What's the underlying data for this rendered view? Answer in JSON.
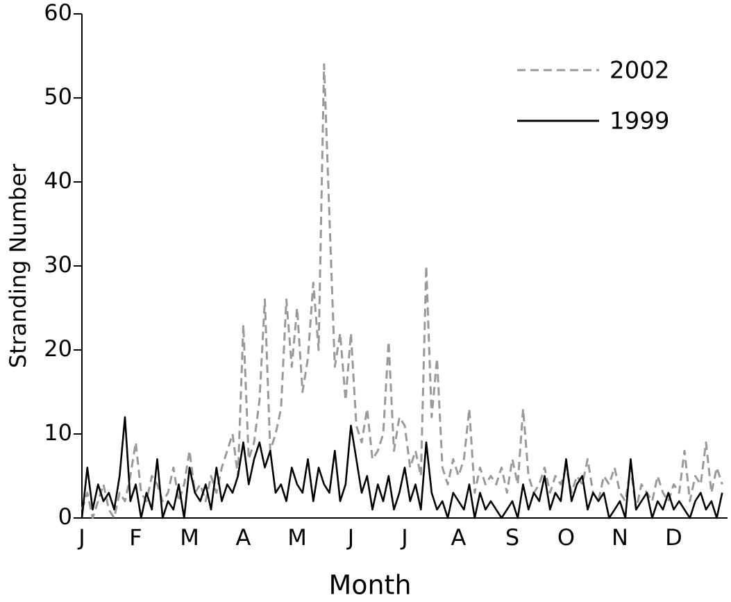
{
  "chart_data": {
    "type": "line",
    "x_label": "Month",
    "y_label": "Stranding Number",
    "categories": [
      "J",
      null,
      null,
      null,
      null,
      null,
      null,
      null,
      null,
      null,
      "F",
      null,
      null,
      null,
      null,
      null,
      null,
      null,
      null,
      null,
      "M",
      null,
      null,
      null,
      null,
      null,
      null,
      null,
      null,
      null,
      "A",
      null,
      null,
      null,
      null,
      null,
      null,
      null,
      null,
      null,
      "M",
      null,
      null,
      null,
      null,
      null,
      null,
      null,
      null,
      null,
      "J",
      null,
      null,
      null,
      null,
      null,
      null,
      null,
      null,
      null,
      "J",
      null,
      null,
      null,
      null,
      null,
      null,
      null,
      null,
      null,
      "A",
      null,
      null,
      null,
      null,
      null,
      null,
      null,
      null,
      null,
      "S",
      null,
      null,
      null,
      null,
      null,
      null,
      null,
      null,
      null,
      "O",
      null,
      null,
      null,
      null,
      null,
      null,
      null,
      null,
      null,
      "N",
      null,
      null,
      null,
      null,
      null,
      null,
      null,
      null,
      null,
      "D",
      null,
      null,
      null,
      null,
      null,
      null,
      null,
      null,
      null
    ],
    "series": [
      {
        "name": "2002",
        "color": "#999999",
        "linestyle": "dashed",
        "values": [
          1,
          3,
          0,
          2,
          4,
          1,
          0,
          3,
          2,
          5,
          9,
          3,
          2,
          5,
          4,
          2,
          3,
          6,
          2,
          4,
          8,
          3,
          4,
          2,
          5,
          3,
          6,
          8,
          10,
          5,
          23,
          7,
          9,
          14,
          26,
          8,
          10,
          13,
          26,
          18,
          25,
          15,
          19,
          28,
          20,
          54,
          36,
          18,
          22,
          14,
          22,
          11,
          9,
          13,
          7,
          8,
          10,
          21,
          8,
          12,
          11,
          6,
          8,
          5,
          30,
          12,
          19,
          6,
          4,
          7,
          5,
          7,
          13,
          3,
          6,
          4,
          5,
          4,
          6,
          3,
          7,
          4,
          13,
          5,
          3,
          4,
          6,
          3,
          5,
          4,
          6,
          3,
          5,
          4,
          7,
          3,
          2,
          5,
          4,
          6,
          3,
          2,
          6,
          1,
          4,
          3,
          2,
          5,
          3,
          2,
          4,
          3,
          8,
          2,
          5,
          4,
          9,
          3,
          6,
          4
        ]
      },
      {
        "name": "1999",
        "color": "#000000",
        "linestyle": "solid",
        "values": [
          0,
          6,
          1,
          4,
          2,
          3,
          1,
          5,
          12,
          2,
          4,
          0,
          3,
          1,
          7,
          0,
          2,
          1,
          4,
          0,
          6,
          3,
          2,
          4,
          1,
          6,
          2,
          4,
          3,
          5,
          9,
          4,
          7,
          9,
          6,
          8,
          3,
          4,
          2,
          6,
          4,
          3,
          7,
          2,
          6,
          4,
          3,
          8,
          2,
          4,
          11,
          7,
          3,
          5,
          1,
          4,
          2,
          5,
          1,
          3,
          6,
          2,
          4,
          1,
          9,
          3,
          1,
          2,
          0,
          3,
          2,
          1,
          4,
          0,
          3,
          1,
          2,
          1,
          0,
          1,
          2,
          0,
          4,
          1,
          3,
          2,
          5,
          1,
          3,
          2,
          7,
          2,
          4,
          5,
          1,
          3,
          2,
          3,
          0,
          1,
          2,
          0,
          7,
          1,
          2,
          3,
          0,
          2,
          1,
          3,
          1,
          2,
          1,
          0,
          2,
          3,
          1,
          2,
          0,
          3
        ]
      }
    ],
    "ylim": [
      0,
      60
    ],
    "yticks": [
      0,
      10,
      20,
      30,
      40,
      50,
      60
    ],
    "legend": "upper right"
  }
}
